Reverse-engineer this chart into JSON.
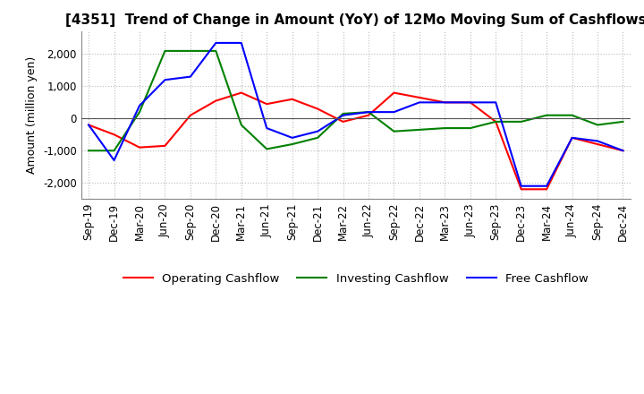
{
  "title": "[4351]  Trend of Change in Amount (YoY) of 12Mo Moving Sum of Cashflows",
  "ylabel": "Amount (million yen)",
  "x_labels": [
    "Sep-19",
    "Dec-19",
    "Mar-20",
    "Jun-20",
    "Sep-20",
    "Dec-20",
    "Mar-21",
    "Jun-21",
    "Sep-21",
    "Dec-21",
    "Mar-22",
    "Jun-22",
    "Sep-22",
    "Dec-22",
    "Mar-23",
    "Jun-23",
    "Sep-23",
    "Dec-23",
    "Mar-24",
    "Jun-24",
    "Sep-24",
    "Dec-24"
  ],
  "operating": [
    -200,
    -500,
    -900,
    -850,
    100,
    550,
    800,
    450,
    600,
    300,
    -100,
    100,
    800,
    650,
    500,
    500,
    -100,
    -2200,
    -2200,
    -600,
    -800,
    -1000
  ],
  "investing": [
    -1000,
    -1000,
    200,
    2100,
    2100,
    2100,
    -200,
    -950,
    -800,
    -600,
    150,
    200,
    -400,
    -350,
    -300,
    -300,
    -100,
    -100,
    100,
    100,
    -200,
    -100
  ],
  "free": [
    -200,
    -1300,
    400,
    1200,
    1300,
    2350,
    2350,
    -300,
    -600,
    -400,
    100,
    200,
    200,
    500,
    500,
    500,
    500,
    -2100,
    -2100,
    -600,
    -700,
    -1000
  ],
  "colors": {
    "operating": "#ff0000",
    "investing": "#008000",
    "free": "#0000ff"
  },
  "ylim": [
    -2500,
    2700
  ],
  "yticks": [
    -2000,
    -1000,
    0,
    1000,
    2000
  ],
  "grid_color": "#bbbbbb",
  "grid_style": "dotted",
  "background": "#ffffff",
  "title_fontsize": 11,
  "label_fontsize": 9,
  "tick_fontsize": 8.5
}
